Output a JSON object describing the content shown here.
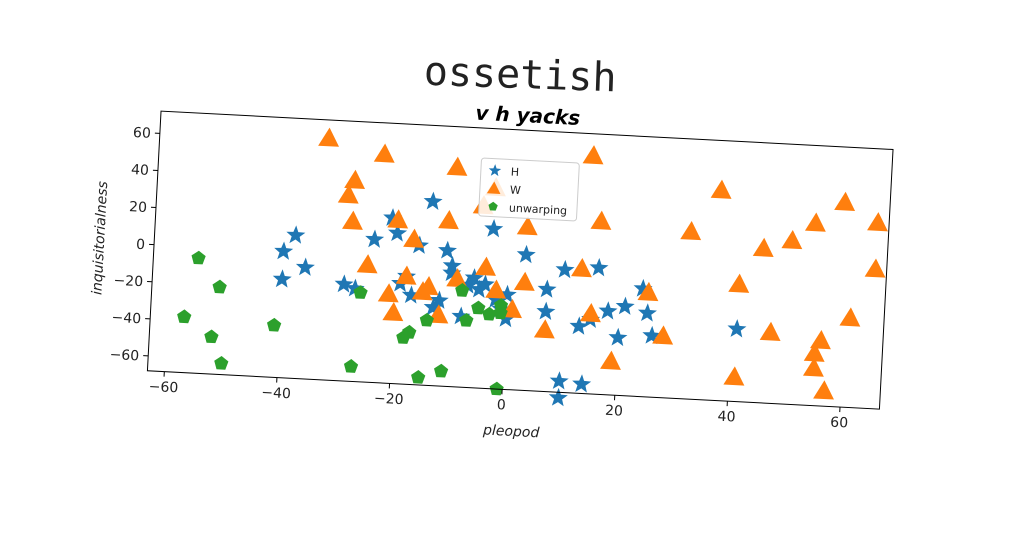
{
  "overlay_title": "ossetish",
  "chart_data": {
    "type": "scatter",
    "title": "v h yacks",
    "xlabel": "pleopod",
    "ylabel": "inquisitorialness",
    "xlim": [
      -63,
      67
    ],
    "ylim": [
      -68,
      72
    ],
    "xticks": [
      -60,
      -40,
      -20,
      0,
      20,
      40,
      60
    ],
    "yticks": [
      -60,
      -40,
      -20,
      0,
      20,
      40,
      60
    ],
    "xtick_labels": [
      "−60",
      "−40",
      "−20",
      "0",
      "20",
      "40",
      "60"
    ],
    "ytick_labels": [
      "−60",
      "−40",
      "−20",
      "0",
      "20",
      "40",
      "60"
    ],
    "grid": false,
    "legend_position": "top-center",
    "series": [
      {
        "name": "H",
        "marker": "star",
        "color": "#1f77b4",
        "points": [
          [
            -40,
            0
          ],
          [
            -38,
            9
          ],
          [
            -40,
            -15
          ],
          [
            -36,
            -8
          ],
          [
            -29,
            -16
          ],
          [
            -27,
            -18
          ],
          [
            -24,
            9
          ],
          [
            -21,
            21
          ],
          [
            -20,
            13
          ],
          [
            -19,
            -14
          ],
          [
            -18,
            -10
          ],
          [
            -17,
            -20
          ],
          [
            -16,
            7
          ],
          [
            -14,
            31
          ],
          [
            -13,
            -26
          ],
          [
            -12,
            -22
          ],
          [
            -11,
            5
          ],
          [
            -10,
            -3
          ],
          [
            -10,
            -7
          ],
          [
            -8,
            -30
          ],
          [
            -7,
            -13
          ],
          [
            -6,
            -9
          ],
          [
            -5,
            -15
          ],
          [
            -4,
            -12
          ],
          [
            -3,
            18
          ],
          [
            -2,
            -20
          ],
          [
            -1,
            -25
          ],
          [
            0,
            -17
          ],
          [
            0,
            -30
          ],
          [
            3,
            5
          ],
          [
            7,
            -13
          ],
          [
            7,
            -25
          ],
          [
            10,
            -2
          ],
          [
            10,
            -62
          ],
          [
            10,
            -71
          ],
          [
            13,
            -32
          ],
          [
            14,
            -63
          ],
          [
            15,
            -28
          ],
          [
            16,
            0
          ],
          [
            18,
            -23
          ],
          [
            20,
            -37
          ],
          [
            21,
            -20
          ],
          [
            24,
            -10
          ],
          [
            25,
            -23
          ],
          [
            26,
            -35
          ],
          [
            41,
            -29
          ]
        ]
      },
      {
        "name": "W",
        "marker": "triangle",
        "color": "#ff7f0e",
        "points": [
          [
            -33,
            62
          ],
          [
            -29,
            32
          ],
          [
            -28,
            40
          ],
          [
            -28,
            18
          ],
          [
            -25,
            -5
          ],
          [
            -23,
            55
          ],
          [
            -21,
            -20
          ],
          [
            -20,
            -30
          ],
          [
            -20,
            20
          ],
          [
            -18,
            -10
          ],
          [
            -17,
            10
          ],
          [
            -15,
            -18
          ],
          [
            -14,
            -15
          ],
          [
            -12,
            -30
          ],
          [
            -11,
            21
          ],
          [
            -10,
            50
          ],
          [
            -9,
            -10
          ],
          [
            -5,
            30
          ],
          [
            -4,
            -3
          ],
          [
            -3,
            40
          ],
          [
            -2,
            -15
          ],
          [
            1,
            -25
          ],
          [
            3,
            -10
          ],
          [
            3,
            20
          ],
          [
            7,
            -35
          ],
          [
            13,
            -1
          ],
          [
            14,
            60
          ],
          [
            15,
            -25
          ],
          [
            16,
            25
          ],
          [
            19,
            -50
          ],
          [
            25,
            -12
          ],
          [
            28,
            -35
          ],
          [
            32,
            22
          ],
          [
            37,
            45
          ],
          [
            41,
            -5
          ],
          [
            41,
            -55
          ],
          [
            45,
            15
          ],
          [
            47,
            -30
          ],
          [
            50,
            20
          ],
          [
            54,
            30
          ],
          [
            55,
            -40
          ],
          [
            55,
            -48
          ],
          [
            56,
            -33
          ],
          [
            57,
            -60
          ],
          [
            59,
            42
          ],
          [
            61,
            -20
          ],
          [
            65,
            32
          ],
          [
            65,
            7
          ]
        ]
      },
      {
        "name": "unwarping",
        "marker": "pentagon",
        "color": "#2ca02c",
        "points": [
          [
            -57,
            -38
          ],
          [
            -55,
            -6
          ],
          [
            -52,
            -48
          ],
          [
            -51,
            -21
          ],
          [
            -50,
            -62
          ],
          [
            -41,
            -40
          ],
          [
            -27,
            -60
          ],
          [
            -26,
            -20
          ],
          [
            -18,
            -43
          ],
          [
            -17,
            -40
          ],
          [
            -15,
            -64
          ],
          [
            -14,
            -33
          ],
          [
            -11,
            -60
          ],
          [
            -8,
            -16
          ],
          [
            -7,
            -32
          ],
          [
            -5,
            -25
          ],
          [
            -3,
            -28
          ],
          [
            -1,
            -27
          ],
          [
            -1,
            -23
          ],
          [
            -1,
            -68
          ]
        ]
      }
    ]
  }
}
